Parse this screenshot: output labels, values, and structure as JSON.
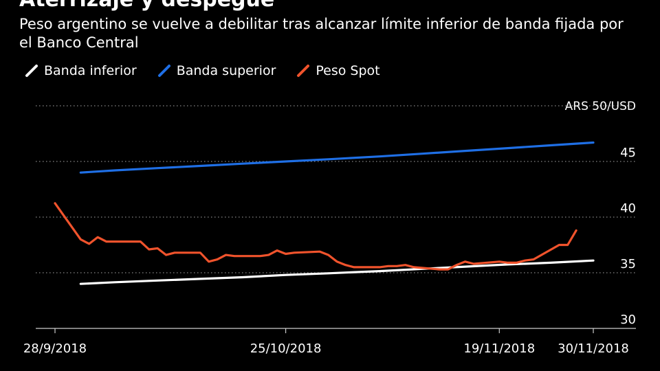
{
  "header": {
    "title": "Aterrizaje y despegue",
    "subtitle": "Peso argentino se vuelve a debilitar tras alcanzar límite inferior de banda fijada por el Banco Central"
  },
  "legend": [
    {
      "label": "Banda inferior",
      "color": "#ffffff"
    },
    {
      "label": "Banda superior",
      "color": "#1f6fe5"
    },
    {
      "label": "Peso Spot",
      "color": "#f0532c"
    }
  ],
  "chart_data": {
    "type": "line",
    "unit_label": "ARS 50/USD",
    "ylim": [
      30,
      50
    ],
    "yticks": [
      30,
      35,
      40,
      45
    ],
    "xticks": [
      "28/9/2018",
      "25/10/2018",
      "19/11/2018",
      "30/11/2018"
    ],
    "x_range": [
      "2018-09-28",
      "2018-11-30"
    ],
    "grid": "horizontal dotted",
    "series": [
      {
        "name": "Banda inferior",
        "color": "#ffffff",
        "points": [
          [
            "2018-10-01",
            34.0
          ],
          [
            "2018-10-05",
            34.15
          ],
          [
            "2018-10-10",
            34.3
          ],
          [
            "2018-10-15",
            34.45
          ],
          [
            "2018-10-20",
            34.6
          ],
          [
            "2018-10-25",
            34.8
          ],
          [
            "2018-10-30",
            34.95
          ],
          [
            "2018-11-05",
            35.15
          ],
          [
            "2018-11-10",
            35.35
          ],
          [
            "2018-11-15",
            35.55
          ],
          [
            "2018-11-20",
            35.75
          ],
          [
            "2018-11-25",
            35.9
          ],
          [
            "2018-11-30",
            36.1
          ]
        ]
      },
      {
        "name": "Banda superior",
        "color": "#1f6fe5",
        "points": [
          [
            "2018-10-01",
            44.0
          ],
          [
            "2018-10-05",
            44.2
          ],
          [
            "2018-10-10",
            44.4
          ],
          [
            "2018-10-15",
            44.6
          ],
          [
            "2018-10-20",
            44.8
          ],
          [
            "2018-10-25",
            45.0
          ],
          [
            "2018-10-30",
            45.2
          ],
          [
            "2018-11-05",
            45.45
          ],
          [
            "2018-11-10",
            45.7
          ],
          [
            "2018-11-15",
            45.95
          ],
          [
            "2018-11-20",
            46.2
          ],
          [
            "2018-11-25",
            46.45
          ],
          [
            "2018-11-30",
            46.7
          ]
        ]
      },
      {
        "name": "Peso Spot",
        "color": "#f0532c",
        "points": [
          [
            "2018-09-28",
            41.25
          ],
          [
            "2018-10-01",
            38.0
          ],
          [
            "2018-10-02",
            37.6
          ],
          [
            "2018-10-03",
            38.2
          ],
          [
            "2018-10-04",
            37.8
          ],
          [
            "2018-10-05",
            37.8
          ],
          [
            "2018-10-08",
            37.8
          ],
          [
            "2018-10-09",
            37.1
          ],
          [
            "2018-10-10",
            37.2
          ],
          [
            "2018-10-11",
            36.6
          ],
          [
            "2018-10-12",
            36.8
          ],
          [
            "2018-10-15",
            36.8
          ],
          [
            "2018-10-16",
            36.0
          ],
          [
            "2018-10-17",
            36.2
          ],
          [
            "2018-10-18",
            36.6
          ],
          [
            "2018-10-19",
            36.5
          ],
          [
            "2018-10-22",
            36.5
          ],
          [
            "2018-10-23",
            36.6
          ],
          [
            "2018-10-24",
            37.0
          ],
          [
            "2018-10-25",
            36.7
          ],
          [
            "2018-10-26",
            36.8
          ],
          [
            "2018-10-29",
            36.9
          ],
          [
            "2018-10-30",
            36.6
          ],
          [
            "2018-10-31",
            36.0
          ],
          [
            "2018-11-01",
            35.7
          ],
          [
            "2018-11-02",
            35.5
          ],
          [
            "2018-11-05",
            35.5
          ],
          [
            "2018-11-06",
            35.6
          ],
          [
            "2018-11-07",
            35.6
          ],
          [
            "2018-11-08",
            35.7
          ],
          [
            "2018-11-09",
            35.5
          ],
          [
            "2018-11-12",
            35.3
          ],
          [
            "2018-11-13",
            35.3
          ],
          [
            "2018-11-14",
            35.7
          ],
          [
            "2018-11-15",
            36.0
          ],
          [
            "2018-11-16",
            35.8
          ],
          [
            "2018-11-19",
            36.0
          ],
          [
            "2018-11-20",
            35.9
          ],
          [
            "2018-11-21",
            35.9
          ],
          [
            "2018-11-22",
            36.1
          ],
          [
            "2018-11-23",
            36.2
          ],
          [
            "2018-11-26",
            37.5
          ],
          [
            "2018-11-27",
            37.5
          ],
          [
            "2018-11-28",
            38.8
          ]
        ]
      }
    ]
  }
}
